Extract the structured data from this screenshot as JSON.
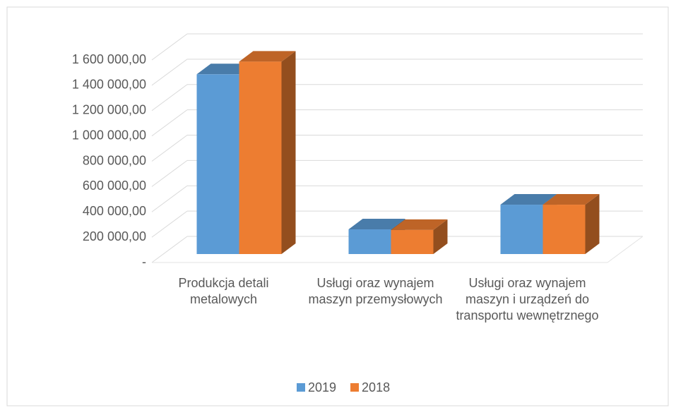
{
  "chart_data": {
    "type": "bar3d",
    "categories": [
      "Produkcja detali metalowych",
      "Usługi oraz wynajem maszyn przemysłowych",
      "Usługi oraz wynajem maszyn i urządzeń do transportu wewnętrznego"
    ],
    "series": [
      {
        "name": "2019",
        "color": "#5b9bd5",
        "values": [
          1420000,
          195000,
          390000
        ]
      },
      {
        "name": "2018",
        "color": "#ed7d31",
        "values": [
          1520000,
          190000,
          390000
        ]
      }
    ],
    "ylim": [
      0,
      1600000
    ],
    "yticks": [
      {
        "value": 0,
        "label": "-"
      },
      {
        "value": 200000,
        "label": "200 000,00"
      },
      {
        "value": 400000,
        "label": "400 000,00"
      },
      {
        "value": 600000,
        "label": "600 000,00"
      },
      {
        "value": 800000,
        "label": "800 000,00"
      },
      {
        "value": 1000000,
        "label": "1 000 000,00"
      },
      {
        "value": 1200000,
        "label": "1 200 000,00"
      },
      {
        "value": 1400000,
        "label": "1 400 000,00"
      },
      {
        "value": 1600000,
        "label": "1 600 000,00"
      }
    ],
    "grid": true,
    "legend": "bottom"
  }
}
